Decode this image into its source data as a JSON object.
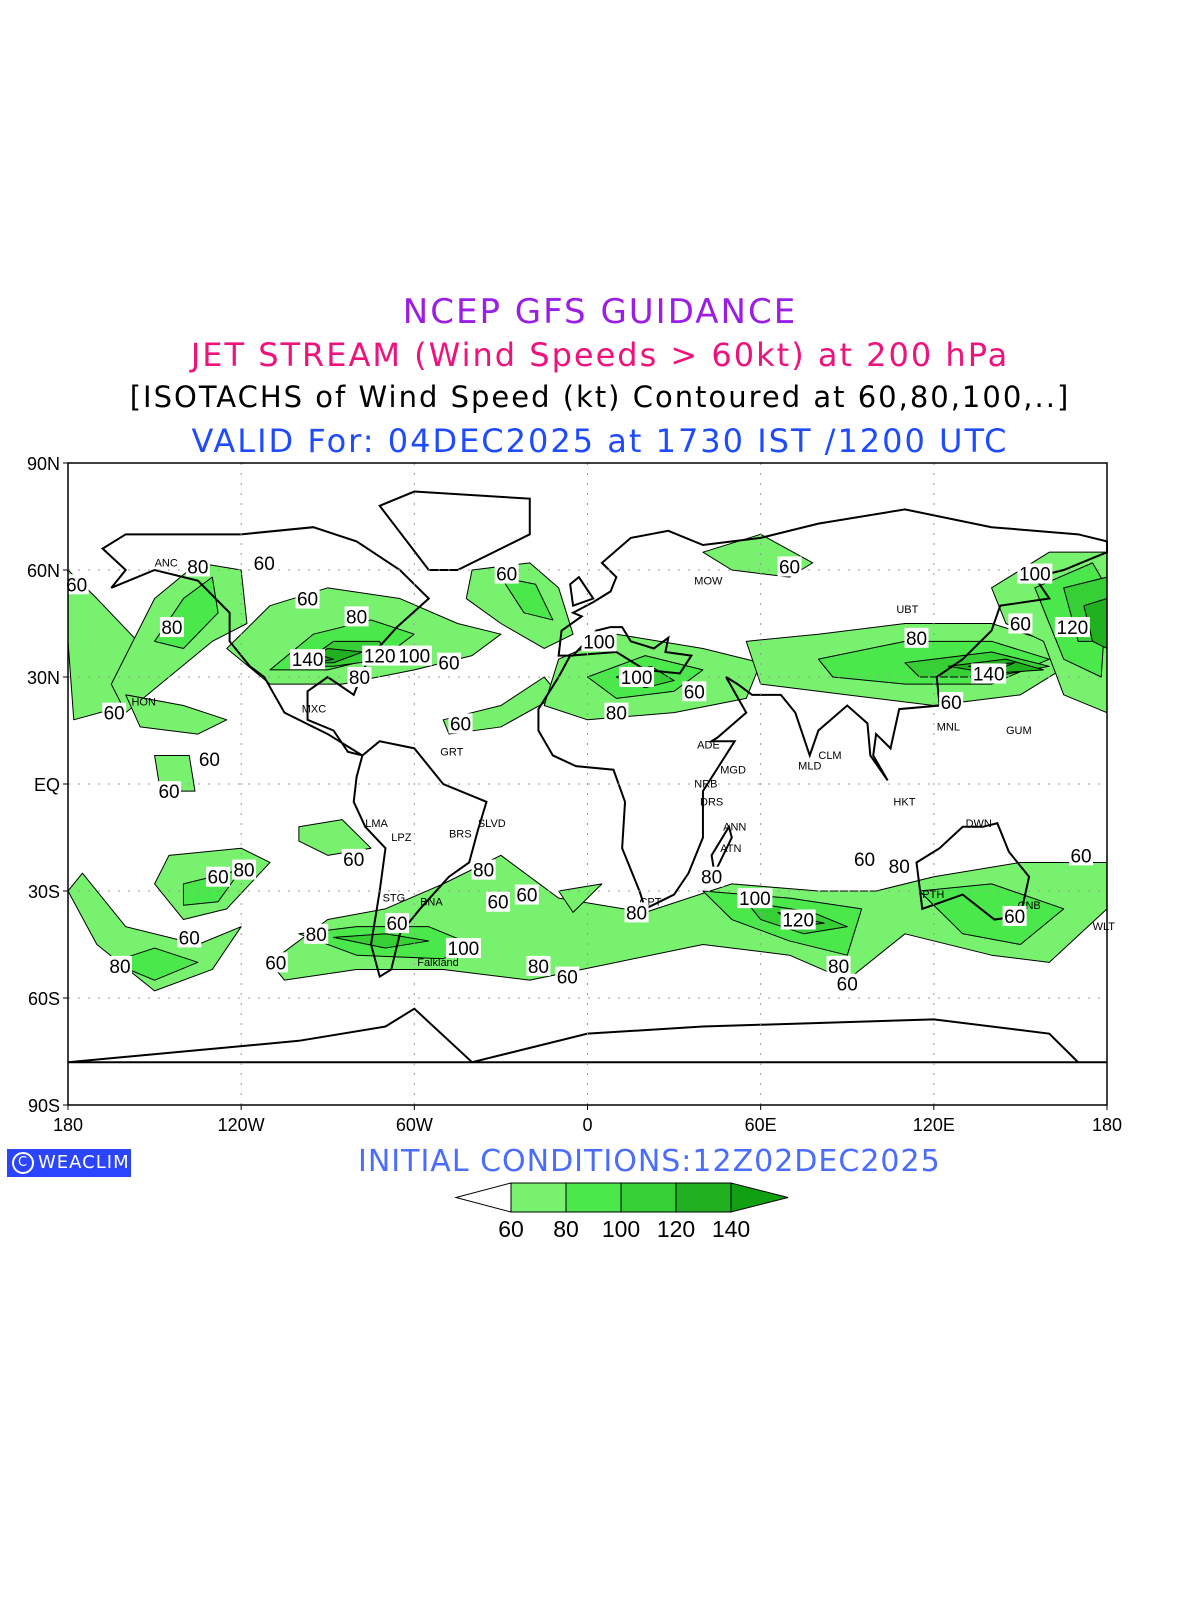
{
  "header": {
    "title": "NCEP GFS GUIDANCE",
    "subtitle": "JET STREAM (Wind Speeds > 60kt) at 200 hPa",
    "description": "[ISOTACHS of Wind Speed (kt) Contoured at 60,80,100,..]",
    "valid": "VALID For: 04DEC2025 at 1730 IST /1200 UTC"
  },
  "footer": {
    "logo": "WEACLIM",
    "initial_conditions": "INITIAL CONDITIONS:12Z02DEC2025"
  },
  "axes": {
    "lat_labels": [
      "90N",
      "60N",
      "30N",
      "EQ",
      "30S",
      "60S",
      "90S"
    ],
    "lon_labels": [
      "180",
      "120W",
      "60W",
      "0",
      "60E",
      "120E",
      "180"
    ]
  },
  "legend": {
    "levels": [
      "60",
      "80",
      "100",
      "120",
      "140"
    ],
    "colors": [
      "#ffffff",
      "#78f26e",
      "#4ae84a",
      "#36cf36",
      "#20b020",
      "#11a011"
    ]
  },
  "jet_regions": [
    {
      "level": 60,
      "pts": [
        [
          -180,
          60
        ],
        [
          -170,
          52
        ],
        [
          -150,
          35
        ],
        [
          -160,
          22
        ],
        [
          -178,
          18
        ],
        [
          -180,
          40
        ]
      ]
    },
    {
      "level": 60,
      "pts": [
        [
          -165,
          28
        ],
        [
          -150,
          52
        ],
        [
          -135,
          62
        ],
        [
          -120,
          60
        ],
        [
          -118,
          45
        ],
        [
          -130,
          40
        ],
        [
          -145,
          30
        ],
        [
          -160,
          20
        ]
      ]
    },
    {
      "level": 80,
      "pts": [
        [
          -150,
          40
        ],
        [
          -140,
          52
        ],
        [
          -130,
          58
        ],
        [
          -128,
          48
        ],
        [
          -140,
          38
        ]
      ]
    },
    {
      "level": 60,
      "pts": [
        [
          -125,
          38
        ],
        [
          -110,
          50
        ],
        [
          -90,
          55
        ],
        [
          -65,
          52
        ],
        [
          -45,
          45
        ],
        [
          -30,
          42
        ],
        [
          -40,
          36
        ],
        [
          -60,
          32
        ],
        [
          -85,
          28
        ],
        [
          -110,
          28
        ]
      ]
    },
    {
      "level": 80,
      "pts": [
        [
          -110,
          32
        ],
        [
          -95,
          42
        ],
        [
          -75,
          46
        ],
        [
          -60,
          42
        ],
        [
          -70,
          36
        ],
        [
          -90,
          32
        ]
      ]
    },
    {
      "level": 100,
      "pts": [
        [
          -100,
          33
        ],
        [
          -88,
          40
        ],
        [
          -72,
          40
        ],
        [
          -70,
          35
        ],
        [
          -88,
          33
        ]
      ]
    },
    {
      "level": 120,
      "pts": [
        [
          -98,
          34
        ],
        [
          -90,
          38
        ],
        [
          -78,
          37
        ],
        [
          -88,
          34
        ]
      ]
    },
    {
      "level": 140,
      "pts": [
        [
          -97,
          33.5
        ],
        [
          -92,
          36
        ],
        [
          -88,
          35
        ]
      ]
    },
    {
      "level": 60,
      "pts": [
        [
          -40,
          60
        ],
        [
          -20,
          62
        ],
        [
          -10,
          55
        ],
        [
          -5,
          42
        ],
        [
          -15,
          38
        ],
        [
          -30,
          45
        ],
        [
          -42,
          52
        ]
      ]
    },
    {
      "level": 80,
      "pts": [
        [
          -30,
          58
        ],
        [
          -18,
          56
        ],
        [
          -12,
          46
        ],
        [
          -22,
          48
        ]
      ]
    },
    {
      "level": 60,
      "pts": [
        [
          -160,
          25
        ],
        [
          -140,
          22
        ],
        [
          -125,
          18
        ],
        [
          -135,
          14
        ],
        [
          -155,
          16
        ]
      ]
    },
    {
      "level": 60,
      "pts": [
        [
          -150,
          8
        ],
        [
          -138,
          8
        ],
        [
          -136,
          -2
        ],
        [
          -148,
          -2
        ]
      ]
    },
    {
      "level": 60,
      "pts": [
        [
          -50,
          18
        ],
        [
          -30,
          22
        ],
        [
          -15,
          30
        ],
        [
          -10,
          25
        ],
        [
          -30,
          16
        ],
        [
          -48,
          14
        ]
      ]
    },
    {
      "level": 60,
      "pts": [
        [
          -10,
          35
        ],
        [
          10,
          42
        ],
        [
          40,
          38
        ],
        [
          60,
          34
        ],
        [
          55,
          24
        ],
        [
          30,
          20
        ],
        [
          0,
          18
        ],
        [
          -15,
          22
        ]
      ]
    },
    {
      "level": 80,
      "pts": [
        [
          0,
          30
        ],
        [
          20,
          36
        ],
        [
          40,
          32
        ],
        [
          30,
          26
        ],
        [
          10,
          24
        ]
      ]
    },
    {
      "level": 100,
      "pts": [
        [
          10,
          30
        ],
        [
          22,
          33
        ],
        [
          30,
          29
        ],
        [
          20,
          27
        ]
      ]
    },
    {
      "level": 60,
      "pts": [
        [
          40,
          65
        ],
        [
          60,
          70
        ],
        [
          78,
          62
        ],
        [
          70,
          58
        ],
        [
          50,
          60
        ]
      ]
    },
    {
      "level": 60,
      "pts": [
        [
          55,
          40
        ],
        [
          80,
          42
        ],
        [
          110,
          45
        ],
        [
          140,
          45
        ],
        [
          160,
          40
        ],
        [
          170,
          35
        ],
        [
          150,
          25
        ],
        [
          120,
          22
        ],
        [
          90,
          25
        ],
        [
          60,
          28
        ]
      ]
    },
    {
      "level": 80,
      "pts": [
        [
          80,
          35
        ],
        [
          110,
          40
        ],
        [
          140,
          40
        ],
        [
          160,
          35
        ],
        [
          140,
          28
        ],
        [
          110,
          28
        ],
        [
          85,
          30
        ]
      ]
    },
    {
      "level": 100,
      "pts": [
        [
          110,
          34
        ],
        [
          140,
          37
        ],
        [
          160,
          33
        ],
        [
          140,
          30
        ],
        [
          115,
          30
        ]
      ]
    },
    {
      "level": 120,
      "pts": [
        [
          125,
          33
        ],
        [
          145,
          35
        ],
        [
          158,
          32
        ],
        [
          140,
          31
        ]
      ]
    },
    {
      "level": 140,
      "pts": [
        [
          132,
          33
        ],
        [
          148,
          34
        ],
        [
          142,
          32
        ]
      ]
    },
    {
      "level": 60,
      "pts": [
        [
          140,
          55
        ],
        [
          160,
          65
        ],
        [
          180,
          65
        ],
        [
          180,
          20
        ],
        [
          165,
          25
        ],
        [
          158,
          40
        ],
        [
          145,
          45
        ]
      ]
    },
    {
      "level": 80,
      "pts": [
        [
          155,
          55
        ],
        [
          175,
          62
        ],
        [
          180,
          55
        ],
        [
          178,
          30
        ],
        [
          165,
          35
        ],
        [
          160,
          45
        ]
      ]
    },
    {
      "level": 100,
      "pts": [
        [
          165,
          55
        ],
        [
          180,
          58
        ],
        [
          180,
          40
        ],
        [
          170,
          40
        ]
      ]
    },
    {
      "level": 120,
      "pts": [
        [
          172,
          50
        ],
        [
          180,
          52
        ],
        [
          180,
          38
        ],
        [
          175,
          40
        ]
      ]
    },
    {
      "level": 60,
      "pts": [
        [
          -180,
          -30
        ],
        [
          -170,
          -45
        ],
        [
          -150,
          -58
        ],
        [
          -130,
          -52
        ],
        [
          -120,
          -40
        ],
        [
          -135,
          -45
        ],
        [
          -160,
          -40
        ],
        [
          -175,
          -25
        ]
      ]
    },
    {
      "level": 80,
      "pts": [
        [
          -165,
          -50
        ],
        [
          -150,
          -55
        ],
        [
          -135,
          -50
        ],
        [
          -150,
          -46
        ]
      ]
    },
    {
      "level": 60,
      "pts": [
        [
          -145,
          -20
        ],
        [
          -120,
          -18
        ],
        [
          -110,
          -22
        ],
        [
          -125,
          -35
        ],
        [
          -140,
          -38
        ],
        [
          -150,
          -28
        ]
      ]
    },
    {
      "level": 80,
      "pts": [
        [
          -140,
          -28
        ],
        [
          -120,
          -24
        ],
        [
          -128,
          -33
        ],
        [
          -140,
          -34
        ]
      ]
    },
    {
      "level": 60,
      "pts": [
        [
          -100,
          -12
        ],
        [
          -85,
          -10
        ],
        [
          -75,
          -18
        ],
        [
          -90,
          -20
        ],
        [
          -100,
          -16
        ]
      ]
    },
    {
      "level": 60,
      "pts": [
        [
          -110,
          -50
        ],
        [
          -90,
          -38
        ],
        [
          -70,
          -35
        ],
        [
          -50,
          -28
        ],
        [
          -30,
          -20
        ],
        [
          -10,
          -32
        ],
        [
          20,
          -36
        ],
        [
          50,
          -28
        ],
        [
          80,
          -30
        ],
        [
          100,
          -30
        ],
        [
          120,
          -26
        ],
        [
          150,
          -22
        ],
        [
          180,
          -22
        ],
        [
          180,
          -35
        ],
        [
          160,
          -50
        ],
        [
          140,
          -48
        ],
        [
          110,
          -42
        ],
        [
          90,
          -55
        ],
        [
          70,
          -48
        ],
        [
          40,
          -45
        ],
        [
          10,
          -50
        ],
        [
          -20,
          -55
        ],
        [
          -50,
          -52
        ],
        [
          -80,
          -52
        ],
        [
          -105,
          -55
        ]
      ]
    },
    {
      "level": 80,
      "pts": [
        [
          -100,
          -42
        ],
        [
          -80,
          -40
        ],
        [
          -55,
          -40
        ],
        [
          -40,
          -45
        ],
        [
          -50,
          -49
        ],
        [
          -80,
          -48
        ]
      ]
    },
    {
      "level": 100,
      "pts": [
        [
          -88,
          -43
        ],
        [
          -70,
          -42
        ],
        [
          -55,
          -44
        ],
        [
          -70,
          -46
        ]
      ]
    },
    {
      "level": 80,
      "pts": [
        [
          40,
          -30
        ],
        [
          70,
          -32
        ],
        [
          95,
          -35
        ],
        [
          90,
          -48
        ],
        [
          70,
          -44
        ],
        [
          50,
          -38
        ]
      ]
    },
    {
      "level": 100,
      "pts": [
        [
          55,
          -33
        ],
        [
          78,
          -36
        ],
        [
          90,
          -40
        ],
        [
          75,
          -42
        ],
        [
          60,
          -38
        ]
      ]
    },
    {
      "level": 120,
      "pts": [
        [
          66,
          -36
        ],
        [
          82,
          -39
        ],
        [
          72,
          -40
        ]
      ]
    },
    {
      "level": 80,
      "pts": [
        [
          115,
          -30
        ],
        [
          140,
          -28
        ],
        [
          165,
          -35
        ],
        [
          150,
          -45
        ],
        [
          130,
          -42
        ]
      ]
    },
    {
      "level": 60,
      "pts": [
        [
          -10,
          -30
        ],
        [
          5,
          -28
        ],
        [
          -5,
          -36
        ]
      ]
    }
  ],
  "contour_labels": [
    {
      "text": "60",
      "lon": -177,
      "lat": 56
    },
    {
      "text": "80",
      "lon": -135,
      "lat": 61
    },
    {
      "text": "60",
      "lon": -112,
      "lat": 62
    },
    {
      "text": "80",
      "lon": -144,
      "lat": 44
    },
    {
      "text": "60",
      "lon": -97,
      "lat": 52
    },
    {
      "text": "80",
      "lon": -80,
      "lat": 47
    },
    {
      "text": "140",
      "lon": -97,
      "lat": 35
    },
    {
      "text": "120",
      "lon": -72,
      "lat": 36
    },
    {
      "text": "100",
      "lon": -60,
      "lat": 36
    },
    {
      "text": "60",
      "lon": -48,
      "lat": 34
    },
    {
      "text": "80",
      "lon": -79,
      "lat": 30
    },
    {
      "text": "60",
      "lon": -28,
      "lat": 59
    },
    {
      "text": "60",
      "lon": -164,
      "lat": 20
    },
    {
      "text": "60",
      "lon": -131,
      "lat": 7
    },
    {
      "text": "60",
      "lon": -145,
      "lat": -2
    },
    {
      "text": "60",
      "lon": -44,
      "lat": 17
    },
    {
      "text": "100",
      "lon": 4,
      "lat": 40
    },
    {
      "text": "100",
      "lon": 17,
      "lat": 30
    },
    {
      "text": "60",
      "lon": 37,
      "lat": 26
    },
    {
      "text": "80",
      "lon": 10,
      "lat": 20
    },
    {
      "text": "60",
      "lon": 70,
      "lat": 61
    },
    {
      "text": "100",
      "lon": 155,
      "lat": 59
    },
    {
      "text": "60",
      "lon": 150,
      "lat": 45
    },
    {
      "text": "120",
      "lon": 168,
      "lat": 44
    },
    {
      "text": "80",
      "lon": 114,
      "lat": 41
    },
    {
      "text": "140",
      "lon": 139,
      "lat": 31
    },
    {
      "text": "60",
      "lon": 126,
      "lat": 23
    },
    {
      "text": "60",
      "lon": 96,
      "lat": -21
    },
    {
      "text": "80",
      "lon": 108,
      "lat": -23
    },
    {
      "text": "60",
      "lon": 171,
      "lat": -20
    },
    {
      "text": "60",
      "lon": 148,
      "lat": -37
    },
    {
      "text": "100",
      "lon": 58,
      "lat": -32
    },
    {
      "text": "120",
      "lon": 73,
      "lat": -38
    },
    {
      "text": "80",
      "lon": 87,
      "lat": -51
    },
    {
      "text": "60",
      "lon": 90,
      "lat": -56
    },
    {
      "text": "80",
      "lon": 43,
      "lat": -26
    },
    {
      "text": "80",
      "lon": 17,
      "lat": -36
    },
    {
      "text": "60",
      "lon": -31,
      "lat": -33
    },
    {
      "text": "60",
      "lon": -21,
      "lat": -31
    },
    {
      "text": "80",
      "lon": -36,
      "lat": -24
    },
    {
      "text": "60",
      "lon": -81,
      "lat": -21
    },
    {
      "text": "60",
      "lon": -66,
      "lat": -39
    },
    {
      "text": "80",
      "lon": -94,
      "lat": -42
    },
    {
      "text": "100",
      "lon": -43,
      "lat": -46
    },
    {
      "text": "80",
      "lon": -17,
      "lat": -51
    },
    {
      "text": "60",
      "lon": -7,
      "lat": -54
    },
    {
      "text": "80",
      "lon": -119,
      "lat": -24
    },
    {
      "text": "60",
      "lon": -128,
      "lat": -26
    },
    {
      "text": "60",
      "lon": -138,
      "lat": -43
    },
    {
      "text": "60",
      "lon": -108,
      "lat": -50
    },
    {
      "text": "80",
      "lon": -162,
      "lat": -51
    }
  ],
  "station_labels": [
    {
      "text": "ANC",
      "lon": -150,
      "lat": 61
    },
    {
      "text": "HON",
      "lon": -158,
      "lat": 22
    },
    {
      "text": "MXC",
      "lon": -99,
      "lat": 20
    },
    {
      "text": "LMA",
      "lon": -77,
      "lat": -12
    },
    {
      "text": "LPZ",
      "lon": -68,
      "lat": -16
    },
    {
      "text": "BRS",
      "lon": -48,
      "lat": -15
    },
    {
      "text": "SLVD",
      "lon": -38,
      "lat": -12
    },
    {
      "text": "STG",
      "lon": -71,
      "lat": -33
    },
    {
      "text": "BNA",
      "lon": -58,
      "lat": -34
    },
    {
      "text": "Falkland",
      "lon": -59,
      "lat": -51
    },
    {
      "text": "GRT",
      "lon": -51,
      "lat": 8
    },
    {
      "text": "MOW",
      "lon": 37,
      "lat": 56
    },
    {
      "text": "UBT",
      "lon": 107,
      "lat": 48
    },
    {
      "text": "ADE",
      "lon": 38,
      "lat": 10
    },
    {
      "text": "NRB",
      "lon": 37,
      "lat": -1
    },
    {
      "text": "DRS",
      "lon": 39,
      "lat": -6
    },
    {
      "text": "ANN",
      "lon": 47,
      "lat": -13
    },
    {
      "text": "ATN",
      "lon": 46,
      "lat": -19
    },
    {
      "text": "MGD",
      "lon": 46,
      "lat": 3
    },
    {
      "text": "CPT",
      "lon": 18,
      "lat": -34
    },
    {
      "text": "MLD",
      "lon": 73,
      "lat": 4
    },
    {
      "text": "CLM",
      "lon": 80,
      "lat": 7
    },
    {
      "text": "MNL",
      "lon": 121,
      "lat": 15
    },
    {
      "text": "GUM",
      "lon": 145,
      "lat": 14
    },
    {
      "text": "HKT",
      "lon": 106,
      "lat": -6
    },
    {
      "text": "DWN",
      "lon": 131,
      "lat": -12
    },
    {
      "text": "PTH",
      "lon": 116,
      "lat": -32
    },
    {
      "text": "CNB",
      "lon": 149,
      "lat": -35
    },
    {
      "text": "WLT",
      "lon": 175,
      "lat": -41
    }
  ]
}
